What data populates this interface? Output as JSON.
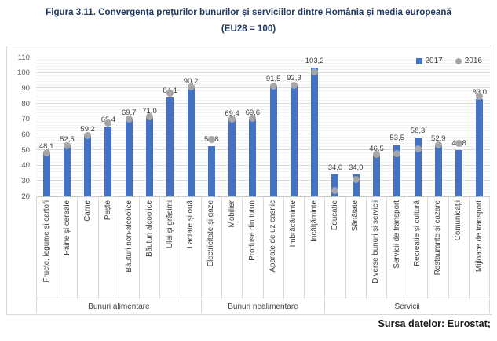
{
  "title": {
    "line1": "Figura 3.11. Convergența prețurilor bunurilor și serviciilor dintre România și media europeană",
    "line2": "(EU28 = 100)"
  },
  "source": "Sursa datelor: Eurostat;",
  "legend": {
    "items": [
      {
        "label": "2017",
        "color": "#4472C4",
        "marker": "square"
      },
      {
        "label": "2016",
        "color": "#A6A6A6",
        "marker": "circle"
      }
    ]
  },
  "colors": {
    "bar_2017": "#4472C4",
    "dot_2016": "#A6A6A6",
    "title_text": "#1F3864"
  },
  "chart_data": {
    "type": "bar",
    "title": "Convergența prețurilor bunurilor și serviciilor dintre România și media europeană (EU28 = 100)",
    "xlabel": "",
    "ylabel": "",
    "ylim": [
      20,
      110
    ],
    "yticks": [
      110,
      100,
      90,
      80,
      70,
      60,
      50,
      40,
      30,
      20
    ],
    "major_unit": 10,
    "minor_unit": 2,
    "grid": true,
    "legend_position": "top-right",
    "groups": [
      {
        "label": "Bunuri alimentare",
        "count": 8
      },
      {
        "label": "Bunuri nealimentare",
        "count": 6
      },
      {
        "label": "Servicii",
        "count": 8
      }
    ],
    "categories": [
      "Fructe, legume și cartofi",
      "Pâine și cereale",
      "Carne",
      "Pește",
      "Băuturi non-alcoolice",
      "Băuturi alcoolice",
      "Ulei și grăsimi",
      "Lactate și ouă",
      "Electricitate și gaze",
      "Mobilier",
      "Produse din tutun",
      "Aparate de uz casnic",
      "Îmbrăcăminte",
      "Încălțăminte",
      "Educație",
      "Sănătate",
      "Diverse bunuri și servicii",
      "Servicii de transport",
      "Recreație și cultură",
      "Restaurante și cazare",
      "Comunicații",
      "Mijloace de transport"
    ],
    "series": [
      {
        "name": "2017",
        "type": "bar",
        "color": "#4472C4",
        "values": [
          48.1,
          52.5,
          59.2,
          65.4,
          69.7,
          71.0,
          84.1,
          90.2,
          52.8,
          69.4,
          69.6,
          91.5,
          92.3,
          103.2,
          34.0,
          34.0,
          46.5,
          53.5,
          58.3,
          52.9,
          49.8,
          83.0
        ],
        "labels": [
          "48,1",
          "52,5",
          "59,2",
          "65,4",
          "69,7",
          "71,0",
          "84,1",
          "90,2",
          "52,8",
          "69,4",
          "69,6",
          "91,5",
          "92,3",
          "103,2",
          "34,0",
          "34,0",
          "46,5",
          "53,5",
          "58,3",
          "52,9",
          "49,8",
          "83,0"
        ]
      },
      {
        "name": "2016",
        "type": "scatter",
        "color": "#A6A6A6",
        "values_estimated": true,
        "values": [
          48,
          53,
          59.5,
          67.5,
          70,
          71.5,
          87,
          91,
          57,
          70,
          70.5,
          91.5,
          92,
          100.5,
          24,
          31,
          47,
          47.5,
          51,
          53.5,
          54.5,
          85
        ]
      }
    ]
  }
}
